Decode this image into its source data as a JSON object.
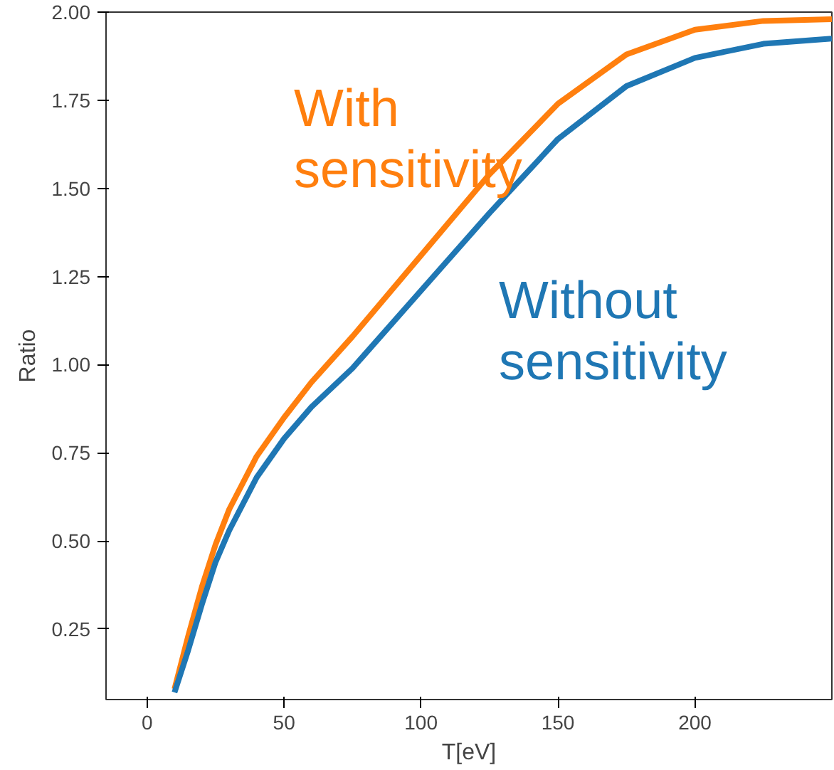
{
  "chart_data": {
    "type": "line",
    "xlabel": "T[eV]",
    "ylabel": "Ratio",
    "xlim": [
      -15,
      250
    ],
    "ylim": [
      0.05,
      2.0
    ],
    "xticks": [
      0,
      50,
      100,
      150,
      200
    ],
    "yticks": [
      0.25,
      {
        "value": 0.5,
        "label": "0.50"
      },
      0.75,
      {
        "value": 1.0,
        "label": "1.00"
      },
      1.25,
      {
        "value": 1.5,
        "label": "1.50"
      },
      1.75,
      {
        "value": 2.0,
        "label": "2.00"
      }
    ],
    "grid": false,
    "legend": false,
    "marker": "none",
    "line_style": "solid",
    "series": [
      {
        "name": "With sensitivity",
        "color": "#ff7f0e",
        "x": [
          10,
          15,
          20,
          25,
          30,
          40,
          50,
          60,
          75,
          100,
          125,
          150,
          175,
          200,
          225,
          250
        ],
        "values": [
          0.08,
          0.23,
          0.37,
          0.49,
          0.59,
          0.74,
          0.85,
          0.95,
          1.08,
          1.31,
          1.54,
          1.74,
          1.88,
          1.95,
          1.975,
          1.98
        ]
      },
      {
        "name": "Without sensitivity",
        "color": "#1f77b4",
        "x": [
          10,
          15,
          20,
          25,
          30,
          40,
          50,
          60,
          75,
          100,
          125,
          150,
          175,
          200,
          225,
          250
        ],
        "values": [
          0.07,
          0.19,
          0.32,
          0.44,
          0.53,
          0.68,
          0.79,
          0.88,
          0.99,
          1.21,
          1.43,
          1.64,
          1.79,
          1.87,
          1.91,
          1.925
        ]
      }
    ]
  }
}
